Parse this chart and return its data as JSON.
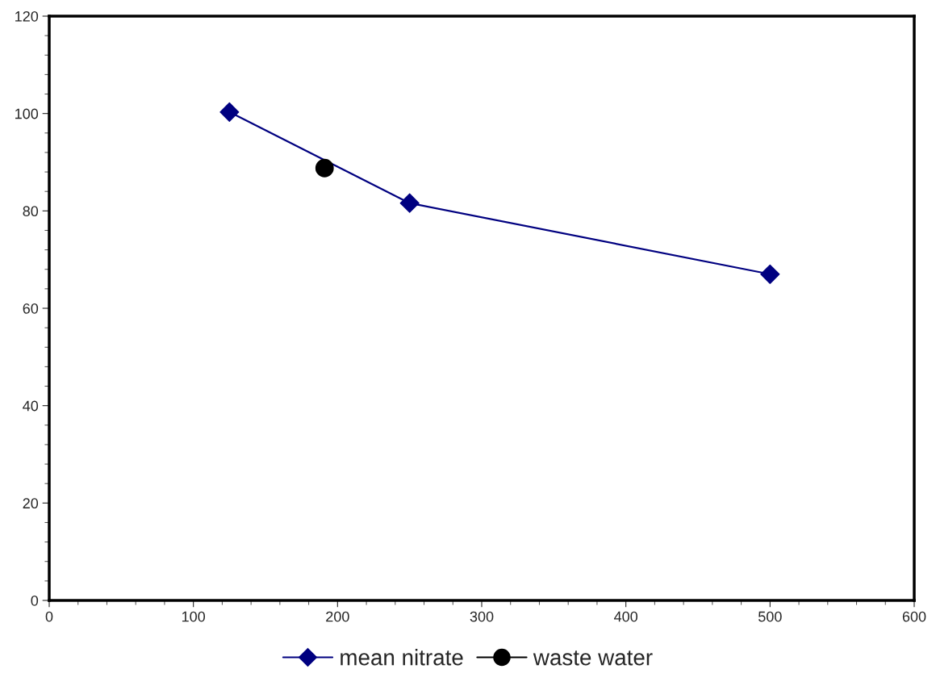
{
  "chart_data": {
    "type": "line",
    "xlim": [
      0,
      600
    ],
    "ylim": [
      0,
      120
    ],
    "xticks": [
      0,
      100,
      200,
      300,
      400,
      500,
      600
    ],
    "yticks": [
      0,
      20,
      40,
      60,
      80,
      100,
      120
    ],
    "grid": false,
    "legend": "bottom",
    "line_style": "solid",
    "series": [
      {
        "name": "mean nitrate",
        "color": "#000080",
        "marker": "diamond",
        "x": [
          125,
          250,
          500
        ],
        "values": [
          100.3,
          81.6,
          67.0
        ]
      },
      {
        "name": "waste water",
        "color": "#000000",
        "marker": "circle",
        "x": [
          191
        ],
        "values": [
          88.8
        ]
      }
    ]
  }
}
